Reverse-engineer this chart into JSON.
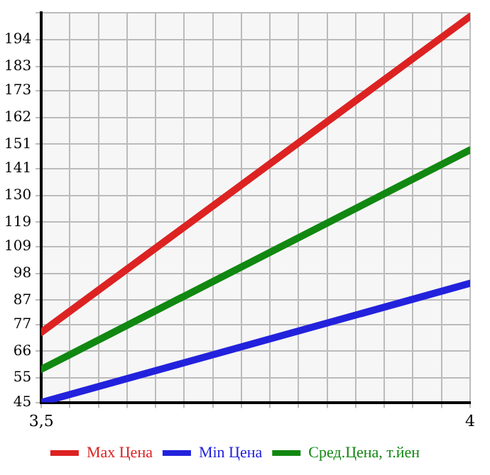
{
  "chart_data": {
    "type": "line",
    "x": [
      3.5,
      4
    ],
    "series": [
      {
        "name": "Max Цена",
        "color": "#dd2222",
        "values": [
          73.8,
          203.5
        ]
      },
      {
        "name": "Min Цена",
        "color": "#2222dd",
        "values": [
          45,
          93.9
        ]
      },
      {
        "name": "Сред.Цена, т.йен",
        "color": "#118811",
        "values": [
          58.6,
          148.7
        ]
      }
    ],
    "xlim": [
      3.5,
      4
    ],
    "xticks": [
      {
        "value": 3.5,
        "label": "3,5"
      },
      {
        "value": 3.5333,
        "label": null
      },
      {
        "value": 3.5667,
        "label": null
      },
      {
        "value": 3.6,
        "label": null
      },
      {
        "value": 3.6333,
        "label": null
      },
      {
        "value": 3.6667,
        "label": null
      },
      {
        "value": 3.7,
        "label": null
      },
      {
        "value": 3.7333,
        "label": null
      },
      {
        "value": 3.7667,
        "label": null
      },
      {
        "value": 3.8,
        "label": null
      },
      {
        "value": 3.8333,
        "label": null
      },
      {
        "value": 3.8667,
        "label": null
      },
      {
        "value": 3.9,
        "label": null
      },
      {
        "value": 3.9333,
        "label": null
      },
      {
        "value": 3.9667,
        "label": null
      },
      4
    ],
    "ylim": [
      45,
      205
    ],
    "yticks": [
      45,
      55,
      66,
      77,
      87,
      98,
      109,
      119,
      130,
      141,
      151,
      162,
      173,
      183,
      194,
      {
        "value": 205,
        "label": null
      }
    ],
    "grid": true,
    "legend": "bottom",
    "marker": "none",
    "line_style": "solid"
  }
}
